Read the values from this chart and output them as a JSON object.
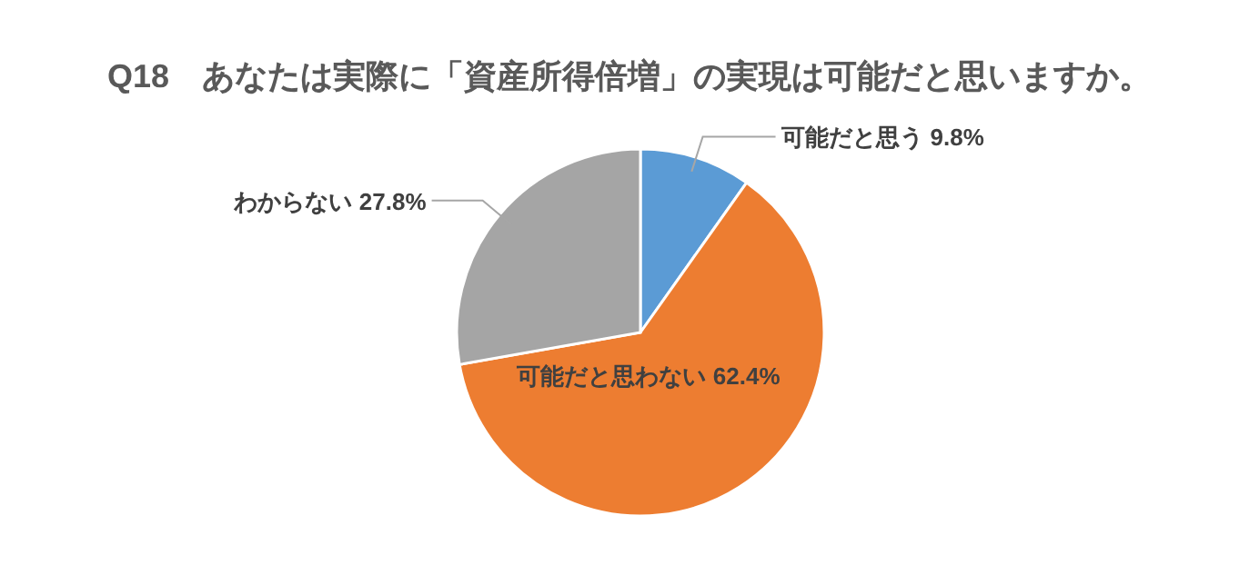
{
  "chart_data": {
    "type": "pie",
    "title": "Q18　あなたは実際に「資産所得倍増」の実現は可能だと思いますか。",
    "categories": [
      "可能だと思う",
      "可能だと思わない",
      "わからない"
    ],
    "values": [
      9.8,
      62.4,
      27.8
    ],
    "colors": [
      "#5b9bd5",
      "#ed7d31",
      "#a5a5a5"
    ],
    "value_labels": [
      "9.8%",
      "62.4%",
      "27.8%"
    ]
  }
}
